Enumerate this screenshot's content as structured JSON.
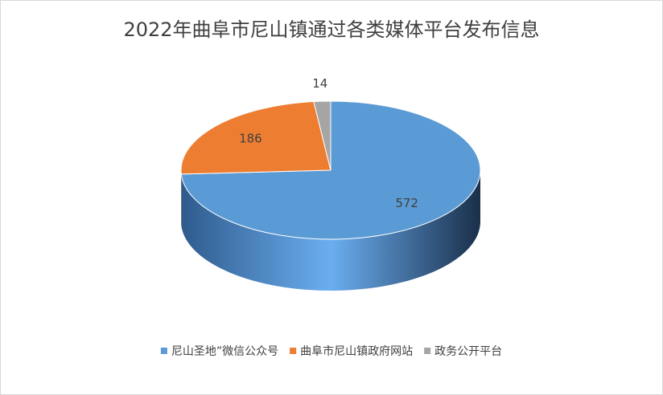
{
  "chart_data": {
    "type": "pie",
    "title": "2022年曲阜市尼山镇通过各类媒体平台发布信息",
    "categories": [
      "尼山圣地”微信公众号",
      "曲阜市尼山镇政府网站",
      "政务公开平台"
    ],
    "values": [
      572,
      186,
      14
    ],
    "colors": [
      "#5b9bd5",
      "#ed7d31",
      "#a5a5a5"
    ],
    "legend": "bottom"
  }
}
